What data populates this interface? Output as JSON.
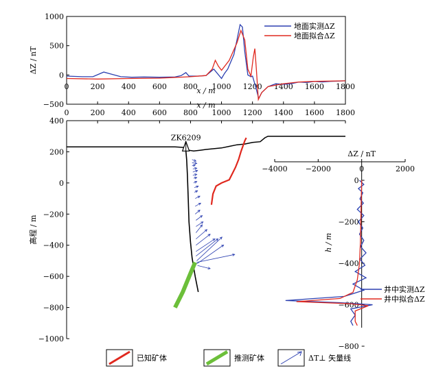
{
  "chart_data": [
    {
      "type": "line",
      "title": "",
      "xlabel": "x / m",
      "ylabel": "ΔZ / nT",
      "xlim": [
        0,
        1800
      ],
      "ylim": [
        -500,
        1000
      ],
      "x_ticks": [
        "0",
        "200",
        "400",
        "600",
        "800",
        "1000",
        "1200",
        "1400",
        "1600",
        "1800"
      ],
      "y_ticks": [
        "1000",
        "500",
        "0",
        "−500"
      ],
      "grid": false,
      "legend": "top-right",
      "series": [
        {
          "name": "地面实测ΔZ",
          "color": "#2b3fb0",
          "points": [
            [
              0,
              -20
            ],
            [
              100,
              -30
            ],
            [
              170,
              -30
            ],
            [
              240,
              50
            ],
            [
              280,
              20
            ],
            [
              350,
              -30
            ],
            [
              420,
              -40
            ],
            [
              500,
              -35
            ],
            [
              600,
              -40
            ],
            [
              700,
              -35
            ],
            [
              740,
              -10
            ],
            [
              770,
              40
            ],
            [
              790,
              -20
            ],
            [
              850,
              -20
            ],
            [
              900,
              -10
            ],
            [
              950,
              100
            ],
            [
              1000,
              -60
            ],
            [
              1020,
              30
            ],
            [
              1040,
              100
            ],
            [
              1080,
              350
            ],
            [
              1100,
              600
            ],
            [
              1120,
              860
            ],
            [
              1135,
              820
            ],
            [
              1150,
              400
            ],
            [
              1170,
              0
            ],
            [
              1190,
              -30
            ],
            [
              1200,
              -20
            ],
            [
              1220,
              -200
            ],
            [
              1240,
              -400
            ],
            [
              1260,
              -300
            ],
            [
              1300,
              -200
            ],
            [
              1350,
              -150
            ],
            [
              1400,
              -160
            ],
            [
              1450,
              -150
            ],
            [
              1500,
              -120
            ],
            [
              1550,
              -130
            ],
            [
              1600,
              -110
            ],
            [
              1650,
              -120
            ],
            [
              1700,
              -110
            ],
            [
              1800,
              -100
            ]
          ]
        },
        {
          "name": "地面拟合ΔZ",
          "color": "#e0281e",
          "points": [
            [
              0,
              -60
            ],
            [
              200,
              -70
            ],
            [
              400,
              -60
            ],
            [
              600,
              -55
            ],
            [
              800,
              -30
            ],
            [
              900,
              -10
            ],
            [
              940,
              100
            ],
            [
              960,
              250
            ],
            [
              980,
              150
            ],
            [
              1000,
              80
            ],
            [
              1050,
              250
            ],
            [
              1100,
              550
            ],
            [
              1125,
              760
            ],
            [
              1150,
              600
            ],
            [
              1170,
              100
            ],
            [
              1190,
              -20
            ],
            [
              1205,
              300
            ],
            [
              1215,
              450
            ],
            [
              1225,
              100
            ],
            [
              1238,
              -420
            ],
            [
              1260,
              -300
            ],
            [
              1300,
              -200
            ],
            [
              1400,
              -150
            ],
            [
              1500,
              -120
            ],
            [
              1600,
              -110
            ],
            [
              1800,
              -100
            ]
          ]
        }
      ]
    },
    {
      "type": "line",
      "title": "",
      "xlabel": "x / m",
      "ylabel": "高程 / m",
      "xlim": [
        0,
        1800
      ],
      "ylim": [
        -1000,
        400
      ],
      "x_ticks": [
        "0",
        "200",
        "400",
        "600",
        "800",
        "1000",
        "1200",
        "1400",
        "1600",
        "1800"
      ],
      "y_ticks": [
        "400",
        "200",
        "0",
        "−200",
        "−400",
        "−600",
        "−800",
        "−1000"
      ],
      "borehole_label": "ZK6209",
      "terrain": [
        [
          0,
          232
        ],
        [
          200,
          232
        ],
        [
          400,
          232
        ],
        [
          600,
          232
        ],
        [
          700,
          232
        ],
        [
          760,
          228
        ],
        [
          790,
          210
        ],
        [
          820,
          205
        ],
        [
          860,
          210
        ],
        [
          900,
          215
        ],
        [
          950,
          220
        ],
        [
          1000,
          225
        ],
        [
          1050,
          235
        ],
        [
          1100,
          245
        ],
        [
          1150,
          250
        ],
        [
          1200,
          260
        ],
        [
          1250,
          265
        ],
        [
          1280,
          290
        ],
        [
          1300,
          300
        ],
        [
          1800,
          300
        ]
      ],
      "borehole": [
        [
          770,
          205
        ],
        [
          775,
          150
        ],
        [
          780,
          50
        ],
        [
          785,
          -100
        ],
        [
          790,
          -250
        ],
        [
          800,
          -380
        ],
        [
          810,
          -480
        ],
        [
          830,
          -600
        ],
        [
          850,
          -700
        ]
      ],
      "known_ore": [
        [
          935,
          -140
        ],
        [
          945,
          -70
        ],
        [
          965,
          -20
        ],
        [
          1000,
          0
        ],
        [
          1050,
          20
        ],
        [
          1090,
          100
        ],
        [
          1110,
          150
        ],
        [
          1125,
          200
        ],
        [
          1150,
          270
        ],
        [
          1160,
          290
        ]
      ],
      "inferred_ore": [
        [
          700,
          -800
        ],
        [
          750,
          -700
        ],
        [
          800,
          -580
        ],
        [
          830,
          -510
        ]
      ],
      "vectors": [
        [
          810,
          150,
          25,
          -10
        ],
        [
          810,
          130,
          30,
          -5
        ],
        [
          810,
          110,
          20,
          5
        ],
        [
          815,
          90,
          25,
          5
        ],
        [
          815,
          70,
          30,
          10
        ],
        [
          815,
          50,
          25,
          5
        ],
        [
          820,
          30,
          20,
          5
        ],
        [
          820,
          0,
          20,
          10
        ],
        [
          825,
          -30,
          25,
          10
        ],
        [
          825,
          -60,
          20,
          10
        ],
        [
          830,
          -100,
          30,
          15
        ],
        [
          830,
          -150,
          35,
          20
        ],
        [
          830,
          -200,
          30,
          25
        ],
        [
          835,
          -240,
          40,
          30
        ],
        [
          835,
          -280,
          45,
          30
        ],
        [
          835,
          -320,
          40,
          50
        ],
        [
          835,
          -360,
          70,
          60
        ],
        [
          835,
          -400,
          90,
          70
        ],
        [
          835,
          -440,
          120,
          80
        ],
        [
          835,
          -470,
          140,
          110
        ],
        [
          840,
          -500,
          160,
          150
        ],
        [
          840,
          -510,
          240,
          50
        ],
        [
          840,
          -520,
          170,
          120
        ],
        [
          845,
          -530,
          80,
          -20
        ]
      ],
      "legend": [
        {
          "name": "已知矿体",
          "color": "#e0281e"
        },
        {
          "name": "推测矿体",
          "color": "#6cbf3a"
        },
        {
          "name": "ΔT⊥ 矢量线",
          "color": "#2b3fb0"
        }
      ]
    },
    {
      "type": "line",
      "title": "",
      "xlabel": "ΔZ / nT",
      "ylabel": "h / m",
      "xlim": [
        -4000,
        2000
      ],
      "ylim": [
        -800,
        0
      ],
      "x_ticks": [
        "−4000",
        "−2000",
        "0",
        "2000"
      ],
      "y_ticks": [
        "0",
        "−200",
        "−400",
        "−600",
        "−800"
      ],
      "legend": "bottom-right",
      "series": [
        {
          "name": "井中实测ΔZ",
          "color": "#2b3fb0",
          "points": [
            [
              -100,
              0
            ],
            [
              100,
              -20
            ],
            [
              -150,
              -40
            ],
            [
              50,
              -60
            ],
            [
              -80,
              -90
            ],
            [
              80,
              -110
            ],
            [
              -200,
              -140
            ],
            [
              100,
              -170
            ],
            [
              -150,
              -200
            ],
            [
              50,
              -230
            ],
            [
              -100,
              -260
            ],
            [
              100,
              -290
            ],
            [
              -50,
              -320
            ],
            [
              200,
              -350
            ],
            [
              -80,
              -380
            ],
            [
              150,
              -410
            ],
            [
              -300,
              -440
            ],
            [
              200,
              -470
            ],
            [
              -400,
              -500
            ],
            [
              100,
              -530
            ],
            [
              -800,
              -560
            ],
            [
              -3500,
              -580
            ],
            [
              -1000,
              -590
            ],
            [
              500,
              -600
            ],
            [
              -500,
              -620
            ],
            [
              -300,
              -650
            ],
            [
              -500,
              -680
            ],
            [
              -400,
              -700
            ]
          ]
        },
        {
          "name": "井中拟合ΔZ",
          "color": "#e0281e",
          "points": [
            [
              0,
              0
            ],
            [
              -20,
              -100
            ],
            [
              -40,
              -200
            ],
            [
              -60,
              -300
            ],
            [
              -100,
              -400
            ],
            [
              -200,
              -480
            ],
            [
              -400,
              -540
            ],
            [
              -1000,
              -570
            ],
            [
              -3000,
              -585
            ],
            [
              -500,
              -595
            ],
            [
              300,
              -605
            ],
            [
              -300,
              -630
            ],
            [
              -300,
              -680
            ],
            [
              -200,
              -700
            ]
          ]
        }
      ]
    }
  ]
}
